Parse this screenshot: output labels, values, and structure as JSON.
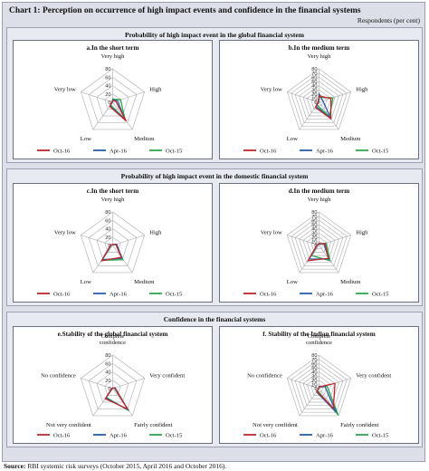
{
  "title": "Chart 1: Perception on occurrence of high impact events and confidence in the financial systems",
  "units": "Respondents (per cent)",
  "source_label": "Source:",
  "source_text": "RBI systemic risk surveys (October 2015, April 2016 and October 2016).",
  "sections": [
    {
      "title": "Probability of high impact event in the global financial system"
    },
    {
      "title": "Probability of high impact event in the domestic financial system"
    },
    {
      "title": "Confidence in the financial systems"
    }
  ],
  "colors": {
    "Oct-16": "#c0272d",
    "Apr-16": "#2a5ea8",
    "Oct-15": "#2ea84a",
    "grid": "#b5b5b5"
  },
  "chart_data": [
    {
      "type": "radar",
      "title": "a.In the short term",
      "categories": [
        "Very high",
        "High",
        "Medium",
        "Low",
        "Very low"
      ],
      "rlim": [
        0,
        80
      ],
      "ticks": [
        0,
        20,
        40,
        60,
        80
      ],
      "series": [
        {
          "name": "Oct-16",
          "values": [
            5,
            8,
            55,
            12,
            2
          ]
        },
        {
          "name": "Apr-16",
          "values": [
            6,
            12,
            52,
            11,
            1
          ]
        },
        {
          "name": "Oct-15",
          "values": [
            8,
            20,
            50,
            8,
            1
          ]
        }
      ]
    },
    {
      "type": "radar",
      "title": "b.In the medium term",
      "categories": [
        "Very high",
        "High",
        "Medium",
        "Low",
        "Very low"
      ],
      "rlim": [
        0,
        80
      ],
      "ticks": [
        0,
        10,
        20,
        30,
        40,
        50,
        60,
        70,
        80
      ],
      "series": [
        {
          "name": "Oct-16",
          "values": [
            15,
            30,
            48,
            15,
            2
          ]
        },
        {
          "name": "Apr-16",
          "values": [
            20,
            10,
            48,
            12,
            1
          ]
        },
        {
          "name": "Oct-15",
          "values": [
            12,
            35,
            42,
            8,
            1
          ]
        }
      ]
    },
    {
      "type": "radar",
      "title": "c.In the short term",
      "categories": [
        "Very high",
        "High",
        "Medium",
        "Low",
        "Very low"
      ],
      "rlim": [
        0,
        80
      ],
      "ticks": [
        0,
        20,
        40,
        60,
        80
      ],
      "series": [
        {
          "name": "Oct-16",
          "values": [
            2,
            8,
            35,
            45,
            5
          ]
        },
        {
          "name": "Apr-16",
          "values": [
            2,
            10,
            38,
            42,
            4
          ]
        },
        {
          "name": "Oct-15",
          "values": [
            2,
            8,
            42,
            44,
            3
          ]
        }
      ]
    },
    {
      "type": "radar",
      "title": "d.In the medium term",
      "categories": [
        "Very high",
        "High",
        "Medium",
        "Low",
        "Very low"
      ],
      "rlim": [
        0,
        80
      ],
      "ticks": [
        0,
        10,
        20,
        30,
        40,
        50,
        60,
        70,
        80
      ],
      "series": [
        {
          "name": "Oct-16",
          "values": [
            4,
            15,
            38,
            45,
            5
          ]
        },
        {
          "name": "Apr-16",
          "values": [
            5,
            12,
            40,
            40,
            4
          ]
        },
        {
          "name": "Oct-15",
          "values": [
            3,
            18,
            45,
            30,
            4
          ]
        }
      ]
    },
    {
      "type": "radar",
      "title": "e.Stability of the global financial system",
      "categories": [
        "Complete confidence",
        "Very confident",
        "Fairly confident",
        "Not very confident",
        "No confidence"
      ],
      "rlim": [
        0,
        80
      ],
      "ticks": [
        0,
        20,
        40,
        60,
        80
      ],
      "series": [
        {
          "name": "Oct-16",
          "values": [
            1,
            5,
            60,
            30,
            2
          ]
        },
        {
          "name": "Apr-16",
          "values": [
            1,
            6,
            62,
            28,
            1
          ]
        },
        {
          "name": "Oct-15",
          "values": [
            1,
            4,
            65,
            26,
            1
          ]
        }
      ]
    },
    {
      "type": "radar",
      "title": "f. Stability of the Indian financial system",
      "categories": [
        "Complete confidence",
        "Very confident",
        "Fairly confident",
        "Not very confident",
        "No confidence"
      ],
      "rlim": [
        0,
        80
      ],
      "ticks": [
        0,
        10,
        20,
        30,
        40,
        50,
        60,
        70,
        80
      ],
      "series": [
        {
          "name": "Oct-16",
          "values": [
            4,
            40,
            58,
            8,
            1
          ]
        },
        {
          "name": "Apr-16",
          "values": [
            5,
            15,
            70,
            10,
            1
          ]
        },
        {
          "name": "Oct-15",
          "values": [
            3,
            20,
            78,
            6,
            1
          ]
        }
      ]
    }
  ]
}
